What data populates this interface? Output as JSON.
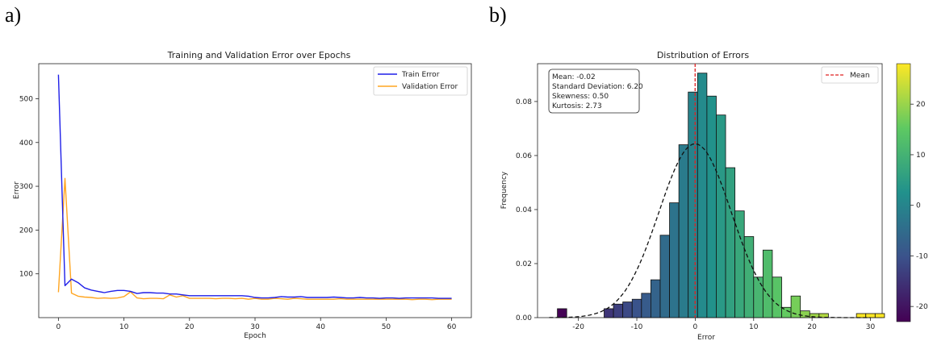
{
  "panels": {
    "a": "a)",
    "b": "b)"
  },
  "chart_data": [
    {
      "type": "line",
      "title": "Training and Validation Error over Epochs",
      "xlabel": "Epoch",
      "ylabel": "Error",
      "xlim": [
        -3,
        63
      ],
      "ylim": [
        0,
        580
      ],
      "xticks": [
        0,
        10,
        20,
        30,
        40,
        50,
        60
      ],
      "yticks": [
        100,
        200,
        300,
        400,
        500
      ],
      "legend": "top-right",
      "grid": false,
      "x": [
        0,
        1,
        2,
        3,
        4,
        5,
        6,
        7,
        8,
        9,
        10,
        11,
        12,
        13,
        14,
        15,
        16,
        17,
        18,
        19,
        20,
        21,
        22,
        23,
        24,
        25,
        26,
        27,
        28,
        29,
        30,
        31,
        32,
        33,
        34,
        35,
        36,
        37,
        38,
        39,
        40,
        41,
        42,
        43,
        44,
        45,
        46,
        47,
        48,
        49,
        50,
        51,
        52,
        53,
        54,
        55,
        56,
        57,
        58,
        59,
        60
      ],
      "series": [
        {
          "name": "Train Error",
          "color": "#1f1fe8",
          "values": [
            555,
            73,
            88,
            80,
            68,
            63,
            60,
            57,
            60,
            62,
            62,
            60,
            55,
            57,
            57,
            56,
            56,
            54,
            54,
            52,
            50,
            50,
            50,
            50,
            50,
            50,
            50,
            50,
            50,
            49,
            46,
            45,
            45,
            46,
            48,
            47,
            47,
            48,
            46,
            46,
            46,
            46,
            47,
            46,
            45,
            45,
            46,
            45,
            45,
            44,
            45,
            45,
            44,
            45,
            45,
            45,
            45,
            45,
            44,
            44,
            44
          ]
        },
        {
          "name": "Validation Error",
          "color": "#ffa520",
          "values": [
            58,
            318,
            56,
            49,
            47,
            46,
            44,
            45,
            44,
            45,
            48,
            59,
            45,
            43,
            44,
            44,
            43,
            52,
            47,
            50,
            44,
            44,
            44,
            44,
            43,
            44,
            44,
            43,
            44,
            42,
            44,
            42,
            42,
            44,
            43,
            42,
            44,
            43,
            42,
            42,
            42,
            42,
            42,
            43,
            42,
            42,
            42,
            42,
            42,
            42,
            42,
            42,
            42,
            42,
            41,
            42,
            42,
            41,
            42,
            42,
            42
          ]
        }
      ]
    },
    {
      "type": "bar",
      "title": "Distribution of Errors",
      "xlabel": "Error",
      "ylabel": "Frequency",
      "xlim": [
        -27,
        32
      ],
      "ylim": [
        0,
        0.094
      ],
      "xticks": [
        -20,
        -10,
        0,
        10,
        20,
        30
      ],
      "yticks": [
        0.0,
        0.02,
        0.04,
        0.06,
        0.08
      ],
      "ytick_labels": [
        "0.00",
        "0.02",
        "0.04",
        "0.06",
        "0.08"
      ],
      "legend": "top-right",
      "bin_width": 1.6,
      "bin_start": -23.6,
      "values": [
        0.0033,
        0,
        0,
        0,
        0,
        0.0033,
        0.005,
        0.0058,
        0.0068,
        0.009,
        0.014,
        0.0305,
        0.0425,
        0.064,
        0.0835,
        0.0905,
        0.082,
        0.075,
        0.0555,
        0.0395,
        0.03,
        0.015,
        0.025,
        0.015,
        0.0038,
        0.008,
        0.0025,
        0.0015,
        0.0015,
        0,
        0,
        0,
        0.0015,
        0.0015,
        0.0015
      ],
      "mean_line": {
        "label": "Mean",
        "value": -0.02,
        "color": "#e02020"
      },
      "normal_fit": {
        "mean": -0.02,
        "sd": 6.2
      },
      "stats_box": [
        "Mean: -0.02",
        "Standard Deviation: 6.20",
        "Skewness: 0.50",
        "Kurtosis: 2.73"
      ],
      "colorbar": {
        "colormap": "viridis",
        "range": [
          -23,
          28
        ],
        "ticks": [
          -20,
          -10,
          0,
          10,
          20
        ]
      }
    }
  ]
}
